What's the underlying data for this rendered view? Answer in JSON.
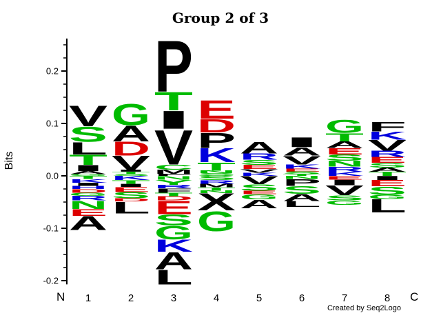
{
  "credit": "Created by Seq2Logo",
  "chart_data": {
    "type": "sequence-logo",
    "title": "Group 2 of 3",
    "ylabel": "Bits",
    "n_terminus_label": "N",
    "c_terminus_label": "C",
    "yaxis_range": [
      -0.207,
      0.262
    ],
    "ytick_minor_step": 0.025,
    "yticks_major": [
      {
        "value": 0.2,
        "label": "0.2"
      },
      {
        "value": 0.1,
        "label": "0.1"
      },
      {
        "value": 0.0,
        "label": "0.0"
      },
      {
        "value": -0.1,
        "label": "-0.1"
      },
      {
        "value": -0.2,
        "label": "-0.2"
      }
    ],
    "colors": {
      "black": "#000000",
      "green": "#00BB00",
      "red": "#DD0000",
      "blue": "#0000DD"
    },
    "positions": [
      {
        "position": "1",
        "above": [
          {
            "aa": "V",
            "bits": 0.04,
            "color": "black"
          },
          {
            "aa": "S",
            "bits": 0.03,
            "color": "green"
          },
          {
            "aa": "L",
            "bits": 0.024,
            "color": "black"
          },
          {
            "aa": "T",
            "bits": 0.02,
            "color": "green"
          },
          {
            "aa": "I",
            "bits": 0.012,
            "color": "black"
          },
          {
            "aa": "A",
            "bits": 0.006,
            "color": "black"
          },
          {
            "aa": "G",
            "bits": 0.003,
            "color": "green"
          }
        ],
        "below": [
          {
            "aa": "T",
            "bits": 0.006,
            "color": "green"
          },
          {
            "aa": "K",
            "bits": 0.007,
            "color": "blue"
          },
          {
            "aa": "I",
            "bits": 0.006,
            "color": "black"
          },
          {
            "aa": "H",
            "bits": 0.006,
            "color": "blue"
          },
          {
            "aa": "D",
            "bits": 0.007,
            "color": "red"
          },
          {
            "aa": "G",
            "bits": 0.006,
            "color": "green"
          },
          {
            "aa": "R",
            "bits": 0.009,
            "color": "blue"
          },
          {
            "aa": "N",
            "bits": 0.016,
            "color": "green"
          },
          {
            "aa": "E",
            "bits": 0.013,
            "color": "red"
          },
          {
            "aa": "A",
            "bits": 0.027,
            "color": "black"
          }
        ]
      },
      {
        "position": "2",
        "above": [
          {
            "aa": "G",
            "bits": 0.042,
            "color": "green"
          },
          {
            "aa": "A",
            "bits": 0.031,
            "color": "black"
          },
          {
            "aa": "D",
            "bits": 0.027,
            "color": "red"
          },
          {
            "aa": "V",
            "bits": 0.027,
            "color": "black"
          },
          {
            "aa": "I",
            "bits": 0.004,
            "color": "black"
          },
          {
            "aa": "T",
            "bits": 0.004,
            "color": "green"
          },
          {
            "aa": "S",
            "bits": 0.004,
            "color": "green"
          }
        ],
        "below": [
          {
            "aa": "K",
            "bits": 0.008,
            "color": "blue"
          },
          {
            "aa": "T",
            "bits": 0.007,
            "color": "green"
          },
          {
            "aa": "I",
            "bits": 0.006,
            "color": "black"
          },
          {
            "aa": "E",
            "bits": 0.01,
            "color": "red"
          },
          {
            "aa": "S",
            "bits": 0.012,
            "color": "green"
          },
          {
            "aa": "D",
            "bits": 0.006,
            "color": "red"
          },
          {
            "aa": "L",
            "bits": 0.023,
            "color": "black"
          }
        ]
      },
      {
        "position": "3",
        "above": [
          {
            "aa": "P",
            "bits": 0.1,
            "color": "black"
          },
          {
            "aa": "T",
            "bits": 0.036,
            "color": "green"
          },
          {
            "aa": "I",
            "bits": 0.035,
            "color": "black"
          },
          {
            "aa": "V",
            "bits": 0.068,
            "color": "black"
          },
          {
            "aa": "C",
            "bits": 0.01,
            "color": "green"
          },
          {
            "aa": "M",
            "bits": 0.008,
            "color": "black"
          },
          {
            "aa": "F",
            "bits": 0.004,
            "color": "black"
          }
        ],
        "below": [
          {
            "aa": "N",
            "bits": 0.007,
            "color": "green"
          },
          {
            "aa": "Y",
            "bits": 0.01,
            "color": "green"
          },
          {
            "aa": "R",
            "bits": 0.007,
            "color": "blue"
          },
          {
            "aa": "F",
            "bits": 0.008,
            "color": "black"
          },
          {
            "aa": "T",
            "bits": 0.007,
            "color": "green"
          },
          {
            "aa": "D",
            "bits": 0.008,
            "color": "red"
          },
          {
            "aa": "E",
            "bits": 0.026,
            "color": "red"
          },
          {
            "aa": "S",
            "bits": 0.022,
            "color": "green"
          },
          {
            "aa": "G",
            "bits": 0.026,
            "color": "green"
          },
          {
            "aa": "K",
            "bits": 0.024,
            "color": "blue"
          },
          {
            "aa": "A",
            "bits": 0.033,
            "color": "black"
          },
          {
            "aa": "L",
            "bits": 0.029,
            "color": "black"
          }
        ]
      },
      {
        "position": "4",
        "above": [
          {
            "aa": "E",
            "bits": 0.036,
            "color": "red"
          },
          {
            "aa": "D",
            "bits": 0.026,
            "color": "red"
          },
          {
            "aa": "P",
            "bits": 0.03,
            "color": "black"
          },
          {
            "aa": "K",
            "bits": 0.027,
            "color": "blue"
          },
          {
            "aa": "T",
            "bits": 0.016,
            "color": "green"
          },
          {
            "aa": "N",
            "bits": 0.005,
            "color": "green"
          },
          {
            "aa": "S",
            "bits": 0.005,
            "color": "green"
          }
        ],
        "below": [
          {
            "aa": "S",
            "bits": 0.008,
            "color": "green"
          },
          {
            "aa": "R",
            "bits": 0.007,
            "color": "blue"
          },
          {
            "aa": "M",
            "bits": 0.007,
            "color": "black"
          },
          {
            "aa": "T",
            "bits": 0.006,
            "color": "green"
          },
          {
            "aa": "N",
            "bits": 0.005,
            "color": "green"
          },
          {
            "aa": "X",
            "bits": 0.033,
            "color": "black"
          },
          {
            "aa": "G",
            "bits": 0.039,
            "color": "green"
          }
        ]
      },
      {
        "position": "5",
        "above": [
          {
            "aa": "A",
            "bits": 0.023,
            "color": "black"
          },
          {
            "aa": "R",
            "bits": 0.012,
            "color": "blue"
          },
          {
            "aa": "S",
            "bits": 0.01,
            "color": "green"
          },
          {
            "aa": "E",
            "bits": 0.008,
            "color": "red"
          },
          {
            "aa": "V",
            "bits": 0.007,
            "color": "black"
          },
          {
            "aa": "K",
            "bits": 0.006,
            "color": "blue"
          }
        ],
        "below": [
          {
            "aa": "V",
            "bits": 0.016,
            "color": "black"
          },
          {
            "aa": "S",
            "bits": 0.012,
            "color": "green"
          },
          {
            "aa": "E",
            "bits": 0.007,
            "color": "red"
          },
          {
            "aa": "G",
            "bits": 0.01,
            "color": "green"
          },
          {
            "aa": "A",
            "bits": 0.017,
            "color": "black"
          }
        ]
      },
      {
        "position": "6",
        "above": [
          {
            "aa": "I",
            "bits": 0.019,
            "color": "black"
          },
          {
            "aa": "A",
            "bits": 0.016,
            "color": "black"
          },
          {
            "aa": "V",
            "bits": 0.017,
            "color": "black"
          },
          {
            "aa": "K",
            "bits": 0.008,
            "color": "blue"
          },
          {
            "aa": "E",
            "bits": 0.006,
            "color": "red"
          },
          {
            "aa": "S",
            "bits": 0.005,
            "color": "green"
          },
          {
            "aa": "T",
            "bits": 0.003,
            "color": "green"
          }
        ],
        "below": [
          {
            "aa": "N",
            "bits": 0.006,
            "color": "green"
          },
          {
            "aa": "P",
            "bits": 0.013,
            "color": "black"
          },
          {
            "aa": "S",
            "bits": 0.015,
            "color": "green"
          },
          {
            "aa": "A",
            "bits": 0.014,
            "color": "black"
          },
          {
            "aa": "L",
            "bits": 0.011,
            "color": "black"
          }
        ]
      },
      {
        "position": "7",
        "above": [
          {
            "aa": "G",
            "bits": 0.025,
            "color": "green"
          },
          {
            "aa": "T",
            "bits": 0.016,
            "color": "green"
          },
          {
            "aa": "A",
            "bits": 0.013,
            "color": "black"
          },
          {
            "aa": "E",
            "bits": 0.012,
            "color": "red"
          },
          {
            "aa": "S",
            "bits": 0.012,
            "color": "green"
          },
          {
            "aa": "N",
            "bits": 0.011,
            "color": "green"
          },
          {
            "aa": "R",
            "bits": 0.01,
            "color": "blue"
          },
          {
            "aa": "K",
            "bits": 0.008,
            "color": "blue"
          }
        ],
        "below": [
          {
            "aa": "E",
            "bits": 0.007,
            "color": "red"
          },
          {
            "aa": "I",
            "bits": 0.011,
            "color": "black"
          },
          {
            "aa": "V",
            "bits": 0.019,
            "color": "black"
          },
          {
            "aa": "S",
            "bits": 0.01,
            "color": "green"
          },
          {
            "aa": "G",
            "bits": 0.008,
            "color": "green"
          }
        ]
      },
      {
        "position": "8",
        "above": [
          {
            "aa": "F",
            "bits": 0.018,
            "color": "black"
          },
          {
            "aa": "K",
            "bits": 0.016,
            "color": "blue"
          },
          {
            "aa": "V",
            "bits": 0.021,
            "color": "black"
          },
          {
            "aa": "R",
            "bits": 0.012,
            "color": "blue"
          },
          {
            "aa": "E",
            "bits": 0.011,
            "color": "red"
          },
          {
            "aa": "S",
            "bits": 0.009,
            "color": "green"
          },
          {
            "aa": "A",
            "bits": 0.008,
            "color": "black"
          },
          {
            "aa": "T",
            "bits": 0.008,
            "color": "green"
          }
        ],
        "below": [
          {
            "aa": "I",
            "bits": 0.008,
            "color": "black"
          },
          {
            "aa": "E",
            "bits": 0.012,
            "color": "red"
          },
          {
            "aa": "S",
            "bits": 0.016,
            "color": "green"
          },
          {
            "aa": "G",
            "bits": 0.008,
            "color": "green"
          },
          {
            "aa": "L",
            "bits": 0.026,
            "color": "black"
          }
        ]
      }
    ]
  }
}
